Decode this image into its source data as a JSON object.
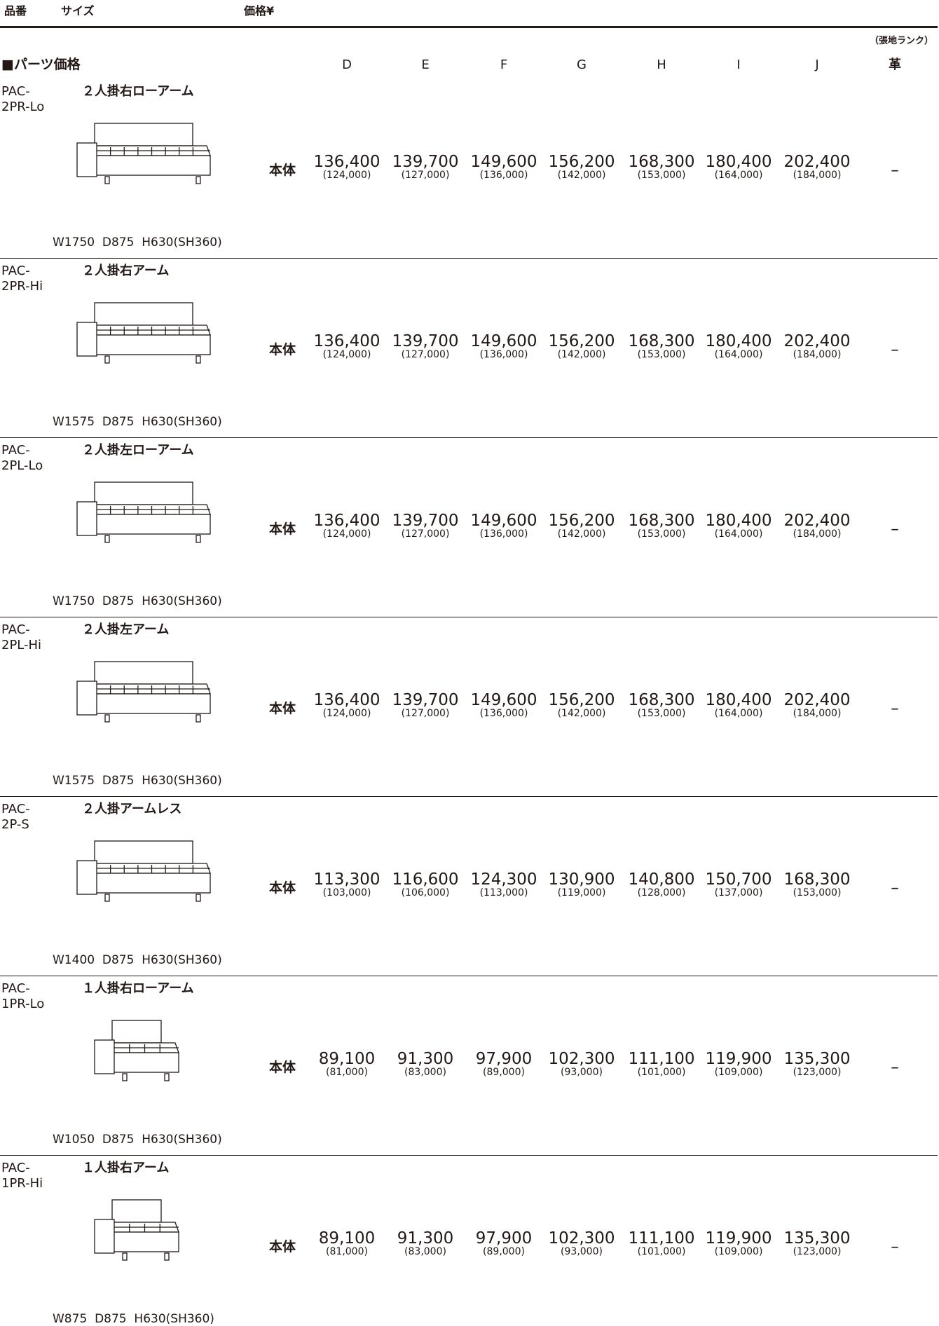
{
  "header": {
    "product_no": "品番",
    "size": "サイズ",
    "price": "価格¥"
  },
  "rank_note": "（張地ランク）",
  "section_title": "■パーツ価格",
  "columns": [
    "D",
    "E",
    "F",
    "G",
    "H",
    "I",
    "J",
    "革"
  ],
  "rows": [
    {
      "code": [
        "PAC-",
        "2PR-Lo"
      ],
      "name": "２人掛右ローアーム",
      "label": "本体",
      "prices": [
        "136,400",
        "139,700",
        "149,600",
        "156,200",
        "168,300",
        "180,400",
        "202,400"
      ],
      "tax_excluded": [
        "(124,000)",
        "(127,000)",
        "(136,000)",
        "(142,000)",
        "(153,000)",
        "(164,000)",
        "(184,000)"
      ],
      "leather": "–",
      "size": "W1750  D875  H630(SH360)"
    },
    {
      "code": [
        "PAC-",
        "2PR-Hi"
      ],
      "name": "２人掛右アーム",
      "label": "本体",
      "prices": [
        "136,400",
        "139,700",
        "149,600",
        "156,200",
        "168,300",
        "180,400",
        "202,400"
      ],
      "tax_excluded": [
        "(124,000)",
        "(127,000)",
        "(136,000)",
        "(142,000)",
        "(153,000)",
        "(164,000)",
        "(184,000)"
      ],
      "leather": "–",
      "size": "W1575  D875  H630(SH360)"
    },
    {
      "code": [
        "PAC-",
        "2PL-Lo"
      ],
      "name": "２人掛左ローアーム",
      "label": "本体",
      "prices": [
        "136,400",
        "139,700",
        "149,600",
        "156,200",
        "168,300",
        "180,400",
        "202,400"
      ],
      "tax_excluded": [
        "(124,000)",
        "(127,000)",
        "(136,000)",
        "(142,000)",
        "(153,000)",
        "(164,000)",
        "(184,000)"
      ],
      "leather": "–",
      "size": "W1750  D875  H630(SH360)"
    },
    {
      "code": [
        "PAC-",
        "2PL-Hi"
      ],
      "name": "２人掛左アーム",
      "label": "本体",
      "prices": [
        "136,400",
        "139,700",
        "149,600",
        "156,200",
        "168,300",
        "180,400",
        "202,400"
      ],
      "tax_excluded": [
        "(124,000)",
        "(127,000)",
        "(136,000)",
        "(142,000)",
        "(153,000)",
        "(164,000)",
        "(184,000)"
      ],
      "leather": "–",
      "size": "W1575  D875  H630(SH360)"
    },
    {
      "code": [
        "PAC-",
        "2P-S"
      ],
      "name": "２人掛アームレス",
      "label": "本体",
      "prices": [
        "113,300",
        "116,600",
        "124,300",
        "130,900",
        "140,800",
        "150,700",
        "168,300"
      ],
      "tax_excluded": [
        "(103,000)",
        "(106,000)",
        "(113,000)",
        "(119,000)",
        "(128,000)",
        "(137,000)",
        "(153,000)"
      ],
      "leather": "–",
      "size": "W1400  D875  H630(SH360)"
    },
    {
      "code": [
        "PAC-",
        "1PR-Lo"
      ],
      "name": "１人掛右ローアーム",
      "label": "本体",
      "prices": [
        "89,100",
        "91,300",
        "97,900",
        "102,300",
        "111,100",
        "119,900",
        "135,300"
      ],
      "tax_excluded": [
        "(81,000)",
        "(83,000)",
        "(89,000)",
        "(93,000)",
        "(101,000)",
        "(109,000)",
        "(123,000)"
      ],
      "leather": "–",
      "size": "W1050  D875  H630(SH360)"
    },
    {
      "code": [
        "PAC-",
        "1PR-Hi"
      ],
      "name": "１人掛右アーム",
      "label": "本体",
      "prices": [
        "89,100",
        "91,300",
        "97,900",
        "102,300",
        "111,100",
        "119,900",
        "135,300"
      ],
      "tax_excluded": [
        "(81,000)",
        "(83,000)",
        "(89,000)",
        "(93,000)",
        "(101,000)",
        "(109,000)",
        "(123,000)"
      ],
      "leather": "–",
      "size": "W875  D875  H630(SH360)"
    }
  ]
}
